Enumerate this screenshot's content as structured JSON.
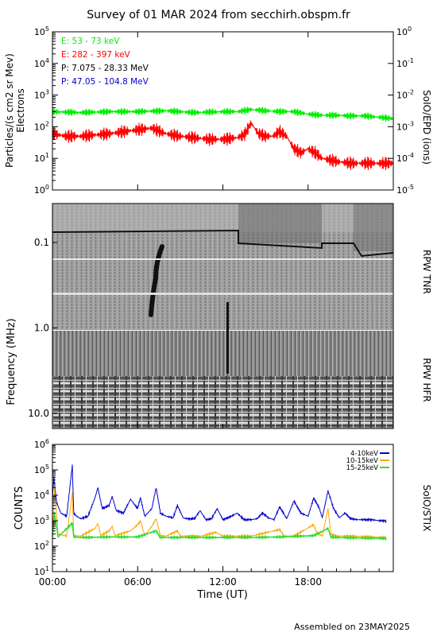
{
  "title": "Survey of 01 MAR 2024 from secchirh.obspm.fr",
  "footer": "Assembled on 23MAY2025",
  "colors": {
    "green": "#00ee00",
    "red": "#ff0000",
    "black": "#000000",
    "blue": "#0000cc",
    "orange": "#ffa500",
    "stix_green": "#33dd33"
  },
  "chart_data": [
    {
      "type": "line",
      "panel": "SoIO/EPD",
      "ylabel_line1": "Particles/(s cm2 sr Mev)",
      "ylabel_line2": "Electrons",
      "right_label": "SoIO/EPD (ions)",
      "yscale": "log",
      "ylim": [
        1,
        100000
      ],
      "y_ticks": [
        "10",
        "10",
        "10",
        "10",
        "10",
        "10"
      ],
      "y_tick_exponents": [
        "0",
        "1",
        "2",
        "3",
        "4",
        "5"
      ],
      "y2lim": [
        1e-05,
        1
      ],
      "y2_ticks": [
        "10",
        "10",
        "10",
        "10",
        "10",
        "10"
      ],
      "y2_tick_exponents": [
        "-5",
        "-4",
        "-3",
        "-2",
        "-1",
        "0"
      ],
      "xlim": [
        0,
        24
      ],
      "legend": [
        {
          "label": "E: 53 - 73 keV",
          "color": "#00ee00"
        },
        {
          "label": "E: 282 - 397 keV",
          "color": "#ff0000"
        },
        {
          "label": "P: 7.075 - 28.33 MeV",
          "color": "#000000"
        },
        {
          "label": "P: 47.05 - 104.8 MeV",
          "color": "#0000cc"
        }
      ],
      "series": [
        {
          "name": "E: 53 - 73 keV",
          "color": "#00ee00",
          "x": [
            0,
            2,
            4,
            6,
            8,
            10,
            12,
            13,
            14,
            15,
            16,
            17,
            18,
            19,
            20,
            21,
            22,
            23,
            24
          ],
          "y": [
            300,
            280,
            300,
            300,
            320,
            280,
            300,
            300,
            350,
            320,
            300,
            300,
            250,
            230,
            230,
            220,
            220,
            200,
            180
          ]
        },
        {
          "name": "E: 282 - 397 keV",
          "color": "#ff0000",
          "x": [
            0,
            1,
            2,
            3,
            4,
            5,
            6,
            7,
            8,
            9,
            10,
            11,
            12,
            13,
            13.5,
            14,
            14.5,
            15,
            15.5,
            16,
            16.5,
            17,
            17.5,
            18,
            18.5,
            19,
            20,
            21,
            22,
            23,
            24
          ],
          "y": [
            60,
            50,
            50,
            55,
            60,
            70,
            80,
            90,
            60,
            50,
            45,
            40,
            40,
            45,
            55,
            130,
            60,
            50,
            50,
            70,
            50,
            20,
            15,
            20,
            15,
            10,
            8,
            7,
            7,
            7,
            7
          ]
        }
      ]
    },
    {
      "type": "heatmap",
      "panel": "RPW TNR / RPW HFR",
      "ylabel": "Frequency (MHz)",
      "yscale": "log",
      "y_ticks": [
        "0.1",
        "1.0",
        "10.0"
      ],
      "right_labels": [
        "RPW TNR",
        "RPW HFR"
      ],
      "xlim": [
        0,
        24
      ]
    },
    {
      "type": "line",
      "panel": "SoIO/STIX",
      "ylabel": "COUNTS",
      "right_label": "SoIO/STIX",
      "xlabel": "Time (UT)",
      "yscale": "log",
      "ylim": [
        10,
        1000000
      ],
      "y_ticks": [
        "10",
        "10",
        "10",
        "10",
        "10",
        "10"
      ],
      "y_tick_exponents": [
        "1",
        "2",
        "3",
        "4",
        "5",
        "6"
      ],
      "xlim": [
        0,
        24
      ],
      "x_ticks": [
        "00:00",
        "06:00",
        "12:00",
        "18:00"
      ],
      "legend": [
        {
          "label": "4-10keV",
          "color": "#0000cc"
        },
        {
          "label": "10-15keV",
          "color": "#ffa500"
        },
        {
          "label": "15-25keV",
          "color": "#33dd33"
        }
      ],
      "series": [
        {
          "name": "4-10keV",
          "color": "#0000cc",
          "x": [
            0,
            0.1,
            0.3,
            0.6,
            1.0,
            1.4,
            1.5,
            1.7,
            2.0,
            2.5,
            3.0,
            3.2,
            3.5,
            4.0,
            4.2,
            4.5,
            5.0,
            5.5,
            6.0,
            6.2,
            6.5,
            7.0,
            7.3,
            7.6,
            8.0,
            8.5,
            8.8,
            9.2,
            9.5,
            10.0,
            10.4,
            10.8,
            11.2,
            11.6,
            12.0,
            12.6,
            13.0,
            13.5,
            14.0,
            14.4,
            14.8,
            15.2,
            15.6,
            16.0,
            16.5,
            17.0,
            17.5,
            18.0,
            18.4,
            18.8,
            19.0,
            19.4,
            19.8,
            20.2,
            20.6,
            21.0,
            21.5,
            22.0,
            22.5,
            23.0,
            23.5
          ],
          "y": [
            8000,
            50000,
            5000,
            2000,
            1500,
            150000,
            2000,
            1500,
            1200,
            1500,
            8000,
            20000,
            3000,
            4000,
            9000,
            2500,
            2000,
            7000,
            3000,
            8000,
            1500,
            3000,
            20000,
            2000,
            1500,
            1300,
            4000,
            1300,
            1200,
            1200,
            2500,
            1100,
            1200,
            3000,
            1100,
            1500,
            2000,
            1100,
            1100,
            1200,
            2000,
            1300,
            1100,
            3500,
            1200,
            6000,
            2000,
            1500,
            8000,
            3000,
            1300,
            15000,
            3000,
            1300,
            2000,
            1200,
            1100,
            1100,
            1100,
            1000,
            1000
          ]
        },
        {
          "name": "10-15keV",
          "color": "#ffa500",
          "x": [
            0,
            0.15,
            0.4,
            1.0,
            1.4,
            1.5,
            2.0,
            3.0,
            3.2,
            3.4,
            4.0,
            4.2,
            4.4,
            5.5,
            6.0,
            6.2,
            6.5,
            7.0,
            7.3,
            7.6,
            8.0,
            8.8,
            9.0,
            10.5,
            11.5,
            12.0,
            14.0,
            16.0,
            16.3,
            17.0,
            18.4,
            18.6,
            19.0,
            19.4,
            19.6,
            20.0,
            21.0,
            23.5
          ],
          "y": [
            250,
            20000,
            300,
            250,
            12000,
            260,
            250,
            500,
            800,
            260,
            400,
            600,
            260,
            400,
            700,
            1000,
            260,
            600,
            1200,
            260,
            250,
            400,
            250,
            250,
            350,
            250,
            250,
            450,
            250,
            250,
            700,
            350,
            250,
            3000,
            300,
            250,
            250,
            220
          ]
        },
        {
          "name": "15-25keV",
          "color": "#33dd33",
          "x": [
            0,
            0.15,
            0.4,
            1.4,
            1.5,
            2.0,
            4.0,
            6.0,
            7.3,
            7.6,
            10.0,
            14.0,
            16.0,
            18.4,
            19.4,
            19.6,
            20.0,
            23.5
          ],
          "y": [
            220,
            2000,
            230,
            800,
            230,
            220,
            230,
            230,
            400,
            220,
            220,
            220,
            230,
            260,
            500,
            230,
            220,
            200
          ]
        }
      ]
    }
  ]
}
